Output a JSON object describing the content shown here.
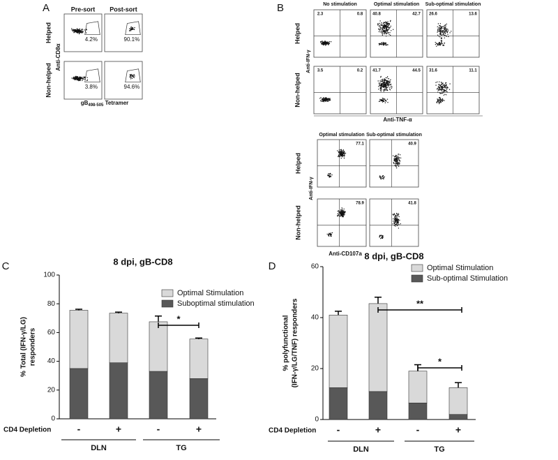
{
  "panel_a": {
    "letter": "A",
    "columns": [
      "Pre-sort",
      "Post-sort"
    ],
    "rows": [
      "Helped",
      "Non-helped"
    ],
    "gate_values": [
      [
        "4.2%",
        "90.1%"
      ],
      [
        "3.8%",
        "94.6%"
      ]
    ],
    "ylabel": "Anti-CD8α",
    "xlabel_main": "gB",
    "xlabel_sub": "498-505",
    "xlabel_tail": " Tetramer"
  },
  "panel_b": {
    "letter": "B",
    "top": {
      "columns": [
        "No stimulation",
        "Optimal stimulation",
        "Sub-optimal stimulation"
      ],
      "rows": [
        "Helped",
        "Non-helped"
      ],
      "quadrants": [
        [
          [
            "2.3",
            "0.8"
          ],
          [
            "40.8",
            "42.7"
          ],
          [
            "26.6",
            "13.6"
          ]
        ],
        [
          [
            "3.5",
            "0.2"
          ],
          [
            "41.7",
            "44.5"
          ],
          [
            "31.6",
            "11.1"
          ]
        ]
      ],
      "ylabel": "Anti-IFN-γ",
      "xlabel": "Anti-TNF-α"
    },
    "bottom": {
      "columns": [
        "Optimal stimulation",
        "Sub-optimal stimulation"
      ],
      "rows": [
        "Helped",
        "Non-helped"
      ],
      "quadrants": [
        [
          "77.1",
          "40.9"
        ],
        [
          "78.9",
          "41.8"
        ]
      ],
      "ylabel": "Anti-IFN-γ",
      "xlabel": "Anti-CD107a"
    }
  },
  "chart_data": [
    {
      "type": "stacked-bar",
      "letter": "C",
      "title": "8 dpi, gB-CD8",
      "ylabel": [
        "% Total (IFN-γ/LG)",
        "responders"
      ],
      "xlabel": "CD4 Depletion",
      "categories": [
        "-",
        "+",
        "-",
        "+"
      ],
      "groups": [
        "DLN",
        "TG"
      ],
      "ylim": [
        0,
        100
      ],
      "yticks": [
        0,
        20,
        40,
        60,
        80,
        100
      ],
      "series": [
        {
          "name": "Suboptimal stimulation",
          "color": "#585858",
          "values": [
            35,
            39,
            33,
            28
          ],
          "errors": [
            1.5,
            1,
            2,
            1
          ]
        },
        {
          "name": "Optimal Stimulation",
          "color": "#d9d9d9",
          "values": [
            40.5,
            34.5,
            34.5,
            27.5
          ],
          "errors": [
            0.7,
            0.7,
            4,
            0.7
          ]
        }
      ],
      "annotations": [
        "*"
      ]
    },
    {
      "type": "stacked-bar",
      "letter": "D",
      "title": "8 dpi, gB-CD8",
      "ylabel": [
        "% polyfunctional",
        "(IFN-γ/LG/TNF) responders"
      ],
      "xlabel": "CD4 Depletion",
      "categories": [
        "-",
        "+",
        "-",
        "+"
      ],
      "groups": [
        "DLN",
        "TG"
      ],
      "ylim": [
        0,
        60
      ],
      "yticks": [
        0,
        20,
        40,
        60
      ],
      "series": [
        {
          "name": "Sub-optimal Stimulation",
          "color": "#585858",
          "values": [
            12.5,
            11,
            6.5,
            2
          ],
          "errors": [
            1,
            0.5,
            0.5,
            0.5
          ]
        },
        {
          "name": "Optimal Stimulation",
          "color": "#d9d9d9",
          "values": [
            28.5,
            34.5,
            12.5,
            10.5
          ],
          "errors": [
            1.5,
            2.5,
            2.5,
            2
          ]
        }
      ],
      "annotations": [
        "**",
        "*"
      ]
    }
  ]
}
